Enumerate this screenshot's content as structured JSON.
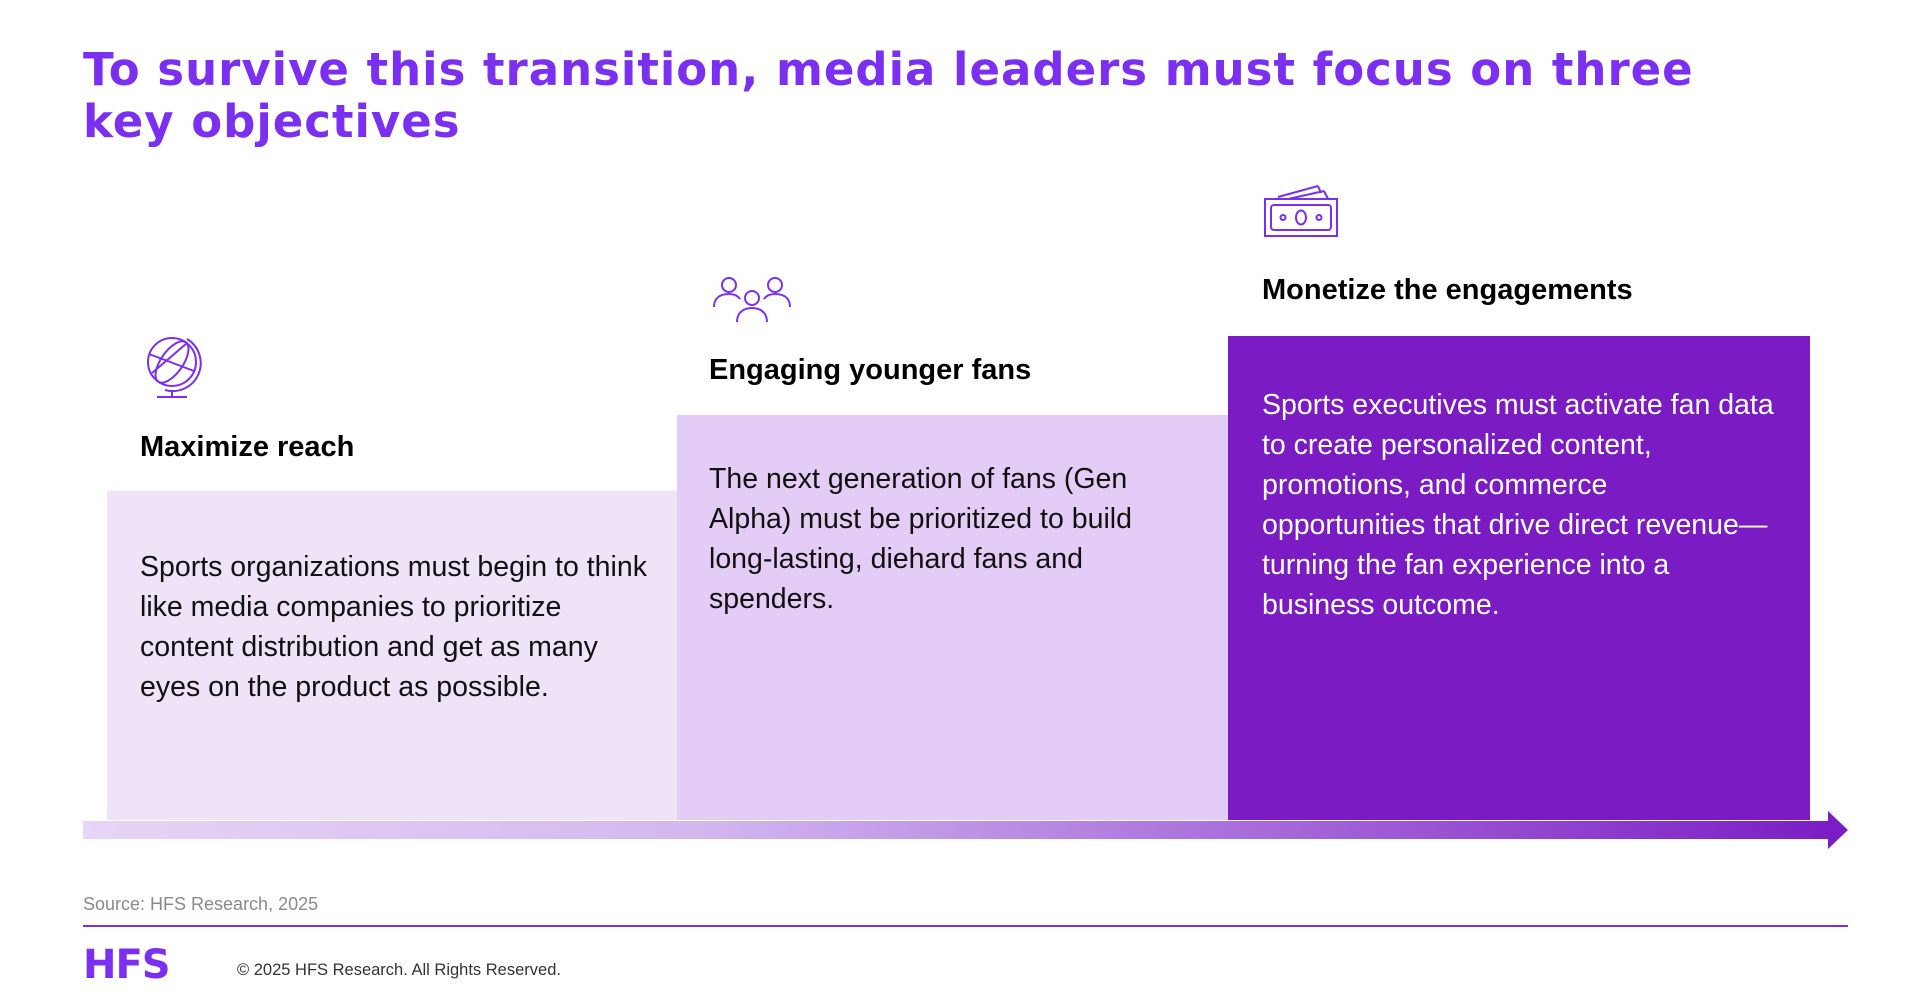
{
  "title": "To survive this transition, media leaders must focus on three key objectives",
  "columns": [
    {
      "icon": "globe-icon",
      "heading": "Maximize reach",
      "body": "Sports organizations must begin to think like media companies to prioritize content distribution and get as many eyes on the product as possible.",
      "box_color": "#efe3f8",
      "text_color": "#111111"
    },
    {
      "icon": "people-group-icon",
      "heading": "Engaging younger fans",
      "body": "The next generation of fans (Gen Alpha) must be prioritized to build long-lasting, diehard fans and spenders.",
      "box_color": "#e3ccf5",
      "text_color": "#111111"
    },
    {
      "icon": "cash-icon",
      "heading": "Monetize the engagements",
      "body": "Sports executives must activate fan data to create personalized content, promotions, and commerce opportunities that drive direct revenue—turning the fan experience into a business outcome.",
      "box_color": "#7a1bc4",
      "text_color": "#ffffff"
    }
  ],
  "source": "Source: HFS Research, 2025",
  "footer": {
    "logo_text": "HFS",
    "copyright": "© 2025 HFS Research. All Rights Reserved."
  },
  "colors": {
    "brand_purple": "#7b2ff0",
    "arrow_start": "#e6d5f6",
    "arrow_end": "#7a1bc4"
  }
}
